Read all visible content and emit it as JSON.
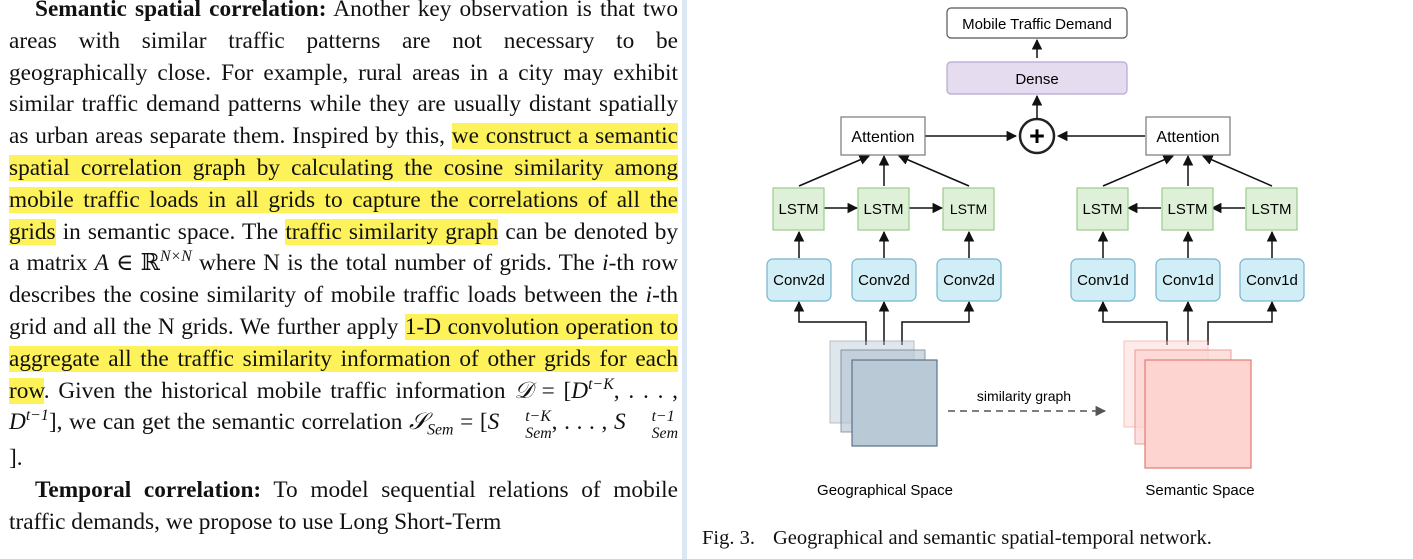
{
  "text": {
    "semantic_heading": "Semantic spatial correlation:",
    "s1": " Another key observation is that two areas with similar traffic patterns are not necessary to be geographically close. For example, rural areas in a city may exhibit similar traffic demand patterns while they are usually distant spatially as urban areas separate them. Inspired by this, ",
    "hl1": "we construct a semantic spatial correlation graph by calculating the cosine similarity among mobile traffic loads in all grids to capture the correlations of all the grids",
    "s2": " in semantic space. The ",
    "hl2": "traffic similarity graph",
    "s3": " can be denoted by a matrix ",
    "m_A": "A",
    "m_in": " ∈ ",
    "m_R": "ℝ",
    "m_NxN": "N×N",
    "s4": " where N is the total number of grids. The ",
    "m_i1": "i",
    "s5": "-th row describes the cosine similarity of mobile traffic loads between the ",
    "m_i2": "i",
    "s6": "-th grid and all the N grids. We further apply ",
    "hl3": "1-D convolution operation to aggregate all the traffic similarity information of other grids for each row",
    "s7": ". Given the historical mobile traffic information ",
    "m_D": "𝒟",
    "m_eq1": " = [",
    "m_Dt": "D",
    "m_tK": "t−K",
    "m_dots1": ", . . . , ",
    "m_Dt2": "D",
    "m_t1": "t−1",
    "m_close1": "]",
    "s8": ", we can get the semantic correlation ",
    "m_S": "𝒮",
    "m_Sem_sub": "Sem",
    "m_eq2": " = [",
    "m_S1": "S",
    "m_S1_sup": "t−K",
    "m_S1_sub": "Sem",
    "m_dots2": ", . . . , ",
    "m_S2": "S",
    "m_S2_sup": "t−1",
    "m_S2_sub": "Sem",
    "m_close2": "].",
    "temporal_heading": "Temporal correlation:",
    "s9": " To model sequential relations of mobile traffic demands, we propose to use Long Short-Term"
  },
  "figure": {
    "output_label": "Mobile Traffic Demand",
    "dense_label": "Dense",
    "attention_label": "Attention",
    "lstm_label": "LSTM",
    "conv2d_label": "Conv2d",
    "conv1d_label": "Conv1d",
    "plus_symbol": "+",
    "similarity_label": "similarity graph",
    "geo_label": "Geographical Space",
    "sem_label": "Semantic Space",
    "colors": {
      "conv_fill": "#d1eef6",
      "conv_stroke": "#75b5cf",
      "lstm_fill": "#dff0d8",
      "lstm_stroke": "#9bcb8d",
      "dense_fill": "#e5dcef",
      "dense_stroke": "#b7a7d3",
      "geo_fill": "#bac9d6",
      "geo_stroke": "#5c7288",
      "sem_fill": "#fdd4d0",
      "sem_stroke": "#e47a70"
    }
  },
  "caption": {
    "label": "Fig. 3.",
    "text": "Geographical and semantic spatial-temporal network."
  }
}
